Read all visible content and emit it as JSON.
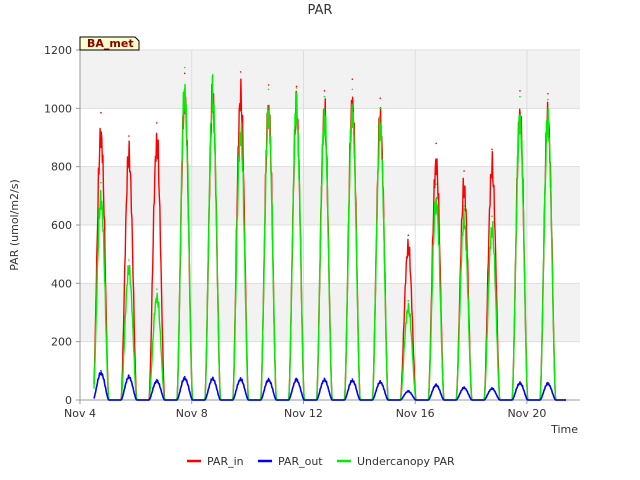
{
  "chart_data": {
    "type": "line",
    "title": "PAR",
    "badge": "BA_met",
    "xlabel": "Time",
    "ylabel": "PAR (umol/m2/s)",
    "xlim": [
      4.0,
      21.9
    ],
    "ylim": [
      0,
      1200
    ],
    "yticks": [
      0,
      200,
      400,
      600,
      800,
      1000,
      1200
    ],
    "xticks": [
      {
        "value": 4,
        "label": "Nov 4"
      },
      {
        "value": 8,
        "label": "Nov 8"
      },
      {
        "value": 12,
        "label": "Nov 12"
      },
      {
        "value": 16,
        "label": "Nov 16"
      },
      {
        "value": 20,
        "label": "Nov 20"
      }
    ],
    "x_start": 4.5,
    "x_end": 21.4,
    "series": [
      {
        "name": "PAR_in",
        "color": "#ff0000",
        "daily_peaks": [
          {
            "day": 4.75,
            "peak": 985
          },
          {
            "day": 5.75,
            "peak": 905
          },
          {
            "day": 6.75,
            "peak": 950
          },
          {
            "day": 7.75,
            "peak": 1120
          },
          {
            "day": 8.75,
            "peak": 1110
          },
          {
            "day": 9.75,
            "peak": 1125
          },
          {
            "day": 10.75,
            "peak": 1080
          },
          {
            "day": 11.75,
            "peak": 1075
          },
          {
            "day": 12.75,
            "peak": 1060
          },
          {
            "day": 13.75,
            "peak": 1100
          },
          {
            "day": 14.75,
            "peak": 1035
          },
          {
            "day": 15.75,
            "peak": 565
          },
          {
            "day": 16.75,
            "peak": 880
          },
          {
            "day": 17.75,
            "peak": 785
          },
          {
            "day": 18.75,
            "peak": 860
          },
          {
            "day": 19.75,
            "peak": 1060
          },
          {
            "day": 20.75,
            "peak": 1050
          }
        ]
      },
      {
        "name": "PAR_out",
        "color": "#0000ff",
        "daily_peaks": [
          {
            "day": 4.75,
            "peak": 100
          },
          {
            "day": 5.75,
            "peak": 85
          },
          {
            "day": 6.75,
            "peak": 70
          },
          {
            "day": 7.75,
            "peak": 80
          },
          {
            "day": 8.75,
            "peak": 78
          },
          {
            "day": 9.75,
            "peak": 76
          },
          {
            "day": 10.75,
            "peak": 74
          },
          {
            "day": 11.75,
            "peak": 74
          },
          {
            "day": 12.75,
            "peak": 74
          },
          {
            "day": 13.75,
            "peak": 72
          },
          {
            "day": 14.75,
            "peak": 66
          },
          {
            "day": 15.75,
            "peak": 32
          },
          {
            "day": 16.75,
            "peak": 55
          },
          {
            "day": 17.75,
            "peak": 45
          },
          {
            "day": 18.75,
            "peak": 42
          },
          {
            "day": 19.75,
            "peak": 62
          },
          {
            "day": 20.75,
            "peak": 60
          }
        ]
      },
      {
        "name": "Undercanopy PAR",
        "color": "#00ee00",
        "daily_peaks": [
          {
            "day": 4.75,
            "peak": 745
          },
          {
            "day": 5.75,
            "peak": 480
          },
          {
            "day": 6.75,
            "peak": 380
          },
          {
            "day": 7.75,
            "peak": 1140
          },
          {
            "day": 8.75,
            "peak": 1115
          },
          {
            "day": 9.75,
            "peak": 990
          },
          {
            "day": 10.75,
            "peak": 1065
          },
          {
            "day": 11.75,
            "peak": 1070
          },
          {
            "day": 12.75,
            "peak": 1040
          },
          {
            "day": 13.75,
            "peak": 1065
          },
          {
            "day": 14.75,
            "peak": 1000
          },
          {
            "day": 15.75,
            "peak": 340
          },
          {
            "day": 16.75,
            "peak": 740
          },
          {
            "day": 17.75,
            "peak": 665
          },
          {
            "day": 18.75,
            "peak": 630
          },
          {
            "day": 19.75,
            "peak": 1040
          },
          {
            "day": 20.75,
            "peak": 1030
          }
        ]
      }
    ],
    "legend": {
      "placement": "bottom-center"
    },
    "grid": true
  }
}
